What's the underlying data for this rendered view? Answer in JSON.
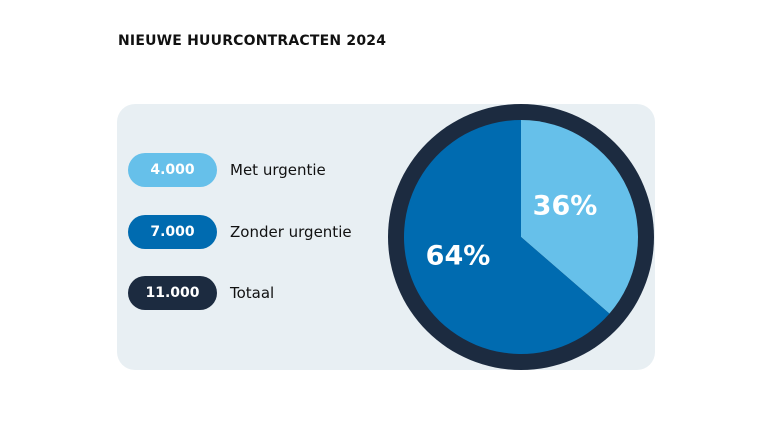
{
  "title": "NIEUWE HUURCONTRACTEN 2024",
  "legend": [
    {
      "value": "4.000",
      "label": "Met urgentie",
      "color": "#66c0ea",
      "text_color": "#ffffff"
    },
    {
      "value": "7.000",
      "label": "Zonder urgentie",
      "color": "#006bb0",
      "text_color": "#ffffff"
    },
    {
      "value": "11.000",
      "label": "Totaal",
      "color": "#1c2b40",
      "text_color": "#ffffff"
    }
  ],
  "colors": {
    "panel": "#e8eff3",
    "ring": "#1c2b40"
  },
  "chart_data": {
    "type": "pie",
    "title": "NIEUWE HUURCONTRACTEN 2024",
    "slices": [
      {
        "name": "Met urgentie",
        "value": 4000,
        "percent": 36,
        "label": "36%",
        "color": "#66c0ea"
      },
      {
        "name": "Zonder urgentie",
        "value": 7000,
        "percent": 64,
        "label": "64%",
        "color": "#006bb0"
      }
    ],
    "total": {
      "name": "Totaal",
      "value": 11000
    }
  }
}
